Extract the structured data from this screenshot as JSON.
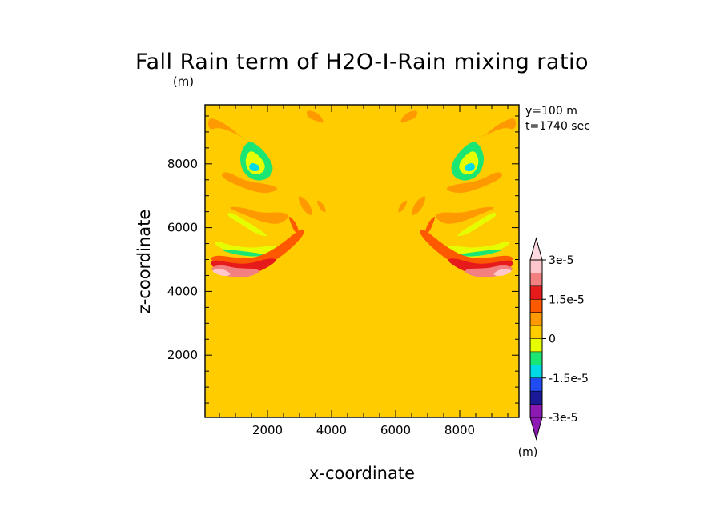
{
  "chart_data": {
    "type": "heatmap",
    "title": "Fall Rain term of H2O-I-Rain mixing ratio",
    "title_unit": "(m)",
    "xlabel": "x-coordinate",
    "ylabel": "z-coordinate",
    "xlim": [
      50,
      9850
    ],
    "ylim": [
      50,
      9850
    ],
    "x_ticks": [
      2000,
      4000,
      6000,
      8000
    ],
    "y_ticks": [
      2000,
      4000,
      6000,
      8000
    ],
    "x_tick_labels": [
      "2000",
      "4000",
      "6000",
      "8000"
    ],
    "y_tick_labels": [
      "2000",
      "4000",
      "6000",
      "8000"
    ],
    "annotations": [
      "y=100 m",
      "t=1740 sec"
    ],
    "background_level": 0,
    "colorbar": {
      "unit": "(m)",
      "levels": [
        -3e-05,
        -2.5e-05,
        -2e-05,
        -1.5e-05,
        -1e-05,
        -5e-06,
        0,
        5e-06,
        1e-05,
        1.5e-05,
        2e-05,
        2.5e-05,
        3e-05
      ],
      "labels": [
        {
          "value": 3e-05,
          "text": "3e-5"
        },
        {
          "value": 1.5e-05,
          "text": "1.5e-5"
        },
        {
          "value": 0,
          "text": "0"
        },
        {
          "value": -1.5e-05,
          "text": "-1.5e-5"
        },
        {
          "value": -3e-05,
          "text": "-3e-5"
        }
      ],
      "colors": [
        "#8c1ab3",
        "#1a1a99",
        "#1f4df2",
        "#00d9e6",
        "#1ae673",
        "#e6ff00",
        "#ffcc00",
        "#ff9900",
        "#ff5900",
        "#e61a1a",
        "#f28080",
        "#ffc7cc"
      ],
      "extend_below_color": "#8c1ab3",
      "extend_above_color": "#ffd9e0"
    },
    "features": [
      {
        "value": -1e-05,
        "points": [
          [
            1400,
            8750
          ],
          [
            1750,
            8550
          ],
          [
            2050,
            8200
          ],
          [
            2200,
            7850
          ],
          [
            2050,
            7550
          ],
          [
            1700,
            7450
          ],
          [
            1350,
            7600
          ],
          [
            1150,
            7950
          ],
          [
            1150,
            8350
          ]
        ]
      },
      {
        "value": -5e-06,
        "points": [
          [
            1450,
            8450
          ],
          [
            1750,
            8250
          ],
          [
            1950,
            7950
          ],
          [
            1850,
            7700
          ],
          [
            1550,
            7650
          ],
          [
            1350,
            7850
          ],
          [
            1300,
            8150
          ]
        ]
      },
      {
        "value": -1.5e-05,
        "points": [
          [
            1500,
            8050
          ],
          [
            1750,
            7950
          ],
          [
            1750,
            7780
          ],
          [
            1520,
            7760
          ],
          [
            1400,
            7900
          ]
        ]
      },
      {
        "value": -5e-06,
        "points": [
          [
            700,
            6400
          ],
          [
            1200,
            6100
          ],
          [
            1650,
            5800
          ],
          [
            2050,
            5700
          ],
          [
            1750,
            5950
          ],
          [
            1250,
            6250
          ],
          [
            850,
            6500
          ]
        ]
      },
      {
        "value": -5e-06,
        "points": [
          [
            350,
            5450
          ],
          [
            900,
            5200
          ],
          [
            1500,
            5050
          ],
          [
            2100,
            5100
          ],
          [
            2500,
            5400
          ],
          [
            2200,
            5450
          ],
          [
            1500,
            5350
          ],
          [
            800,
            5450
          ],
          [
            400,
            5600
          ]
        ]
      },
      {
        "value": -1e-05,
        "points": [
          [
            450,
            5330
          ],
          [
            1000,
            5150
          ],
          [
            1600,
            5080
          ],
          [
            2000,
            5150
          ],
          [
            1500,
            5230
          ],
          [
            900,
            5300
          ]
        ]
      },
      {
        "value": 5e-06,
        "points": [
          [
            150,
            9500
          ],
          [
            700,
            9250
          ],
          [
            1100,
            8900
          ],
          [
            1500,
            8700
          ],
          [
            1000,
            8950
          ],
          [
            500,
            9150
          ],
          [
            150,
            9050
          ]
        ]
      },
      {
        "value": 5e-06,
        "points": [
          [
            500,
            7600
          ],
          [
            1200,
            7250
          ],
          [
            1900,
            7050
          ],
          [
            2400,
            7200
          ],
          [
            2100,
            7350
          ],
          [
            1300,
            7450
          ],
          [
            700,
            7800
          ]
        ]
      },
      {
        "value": 5e-06,
        "points": [
          [
            700,
            6650
          ],
          [
            1300,
            6400
          ],
          [
            1900,
            6150
          ],
          [
            2400,
            6100
          ],
          [
            2700,
            6350
          ],
          [
            2500,
            6500
          ],
          [
            1800,
            6450
          ],
          [
            1200,
            6650
          ]
        ]
      },
      {
        "value": 5e-06,
        "points": [
          [
            3200,
            9700
          ],
          [
            3600,
            9600
          ],
          [
            3800,
            9250
          ],
          [
            3500,
            9350
          ],
          [
            3250,
            9450
          ]
        ]
      },
      {
        "value": 5e-06,
        "points": [
          [
            2950,
            7050
          ],
          [
            3300,
            6800
          ],
          [
            3450,
            6350
          ],
          [
            3200,
            6450
          ],
          [
            3000,
            6750
          ]
        ]
      },
      {
        "value": 5e-06,
        "points": [
          [
            3500,
            6900
          ],
          [
            3750,
            6750
          ],
          [
            3850,
            6450
          ],
          [
            3650,
            6550
          ]
        ]
      },
      {
        "value": 1e-05,
        "points": [
          [
            150,
            5000
          ],
          [
            800,
            4750
          ],
          [
            1400,
            4600
          ],
          [
            2000,
            4800
          ],
          [
            2700,
            5300
          ],
          [
            3200,
            5850
          ],
          [
            3050,
            6000
          ],
          [
            2400,
            5450
          ],
          [
            1700,
            5050
          ],
          [
            1000,
            5050
          ],
          [
            400,
            5150
          ]
        ]
      },
      {
        "value": 1e-05,
        "points": [
          [
            2650,
            6400
          ],
          [
            2900,
            6150
          ],
          [
            3000,
            5800
          ],
          [
            2850,
            5850
          ],
          [
            2700,
            6200
          ]
        ]
      },
      {
        "value": 1.5e-05,
        "points": [
          [
            150,
            4850
          ],
          [
            700,
            4560
          ],
          [
            1300,
            4480
          ],
          [
            1900,
            4680
          ],
          [
            2350,
            5000
          ],
          [
            2050,
            5050
          ],
          [
            1400,
            4850
          ],
          [
            800,
            4900
          ],
          [
            350,
            5000
          ]
        ]
      },
      {
        "value": 2e-05,
        "points": [
          [
            150,
            4700
          ],
          [
            700,
            4470
          ],
          [
            1300,
            4420
          ],
          [
            1800,
            4600
          ],
          [
            1650,
            4720
          ],
          [
            1050,
            4720
          ],
          [
            500,
            4850
          ]
        ]
      },
      {
        "value": 2.5e-05,
        "points": [
          [
            250,
            4620
          ],
          [
            600,
            4470
          ],
          [
            900,
            4520
          ],
          [
            650,
            4700
          ],
          [
            350,
            4700
          ]
        ]
      },
      {
        "value": 3e-05,
        "points": [
          [
            350,
            4620
          ],
          [
            600,
            4520
          ],
          [
            750,
            4560
          ],
          [
            550,
            4660
          ]
        ]
      }
    ]
  }
}
